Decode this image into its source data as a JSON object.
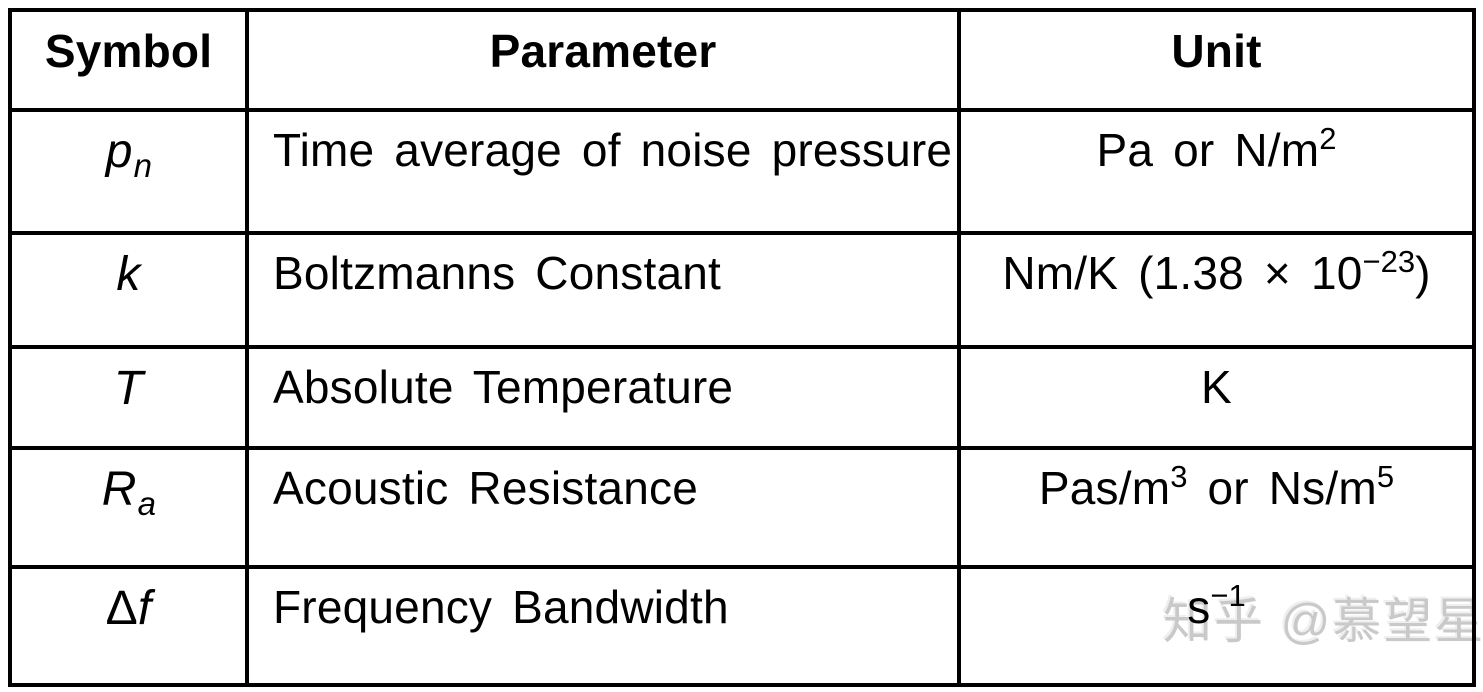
{
  "table": {
    "headers": {
      "symbol": "Symbol",
      "parameter": "Parameter",
      "unit": "Unit"
    },
    "rows": [
      {
        "symbol": {
          "main": "p",
          "sub": "n"
        },
        "parameter": "Time average of noise pressure",
        "unit": {
          "t1": "Pa or N/m",
          "s1": "2"
        }
      },
      {
        "symbol": {
          "main": "k"
        },
        "parameter": "Boltzmanns Constant",
        "unit": {
          "t1": "Nm/K (1.38 × 10",
          "s1": "−23",
          "t2": ")"
        }
      },
      {
        "symbol": {
          "main": "T"
        },
        "parameter": "Absolute Temperature",
        "unit": {
          "t1": "K"
        }
      },
      {
        "symbol": {
          "main": "R",
          "sub": "a"
        },
        "parameter": "Acoustic Resistance",
        "unit": {
          "t1": "Pas/m",
          "s1": "3",
          "t2": " or Ns/m",
          "s2": "5"
        }
      },
      {
        "symbol": {
          "prefix": "Δ",
          "main": "f"
        },
        "parameter": "Frequency Bandwidth",
        "unit": {
          "t1": "s",
          "s1": "−1"
        }
      }
    ]
  },
  "watermark": {
    "text": "知乎 @慕望星",
    "color": "#c9c9c9"
  },
  "colors": {
    "border": "#000000",
    "text": "#000000",
    "background": "#ffffff"
  }
}
